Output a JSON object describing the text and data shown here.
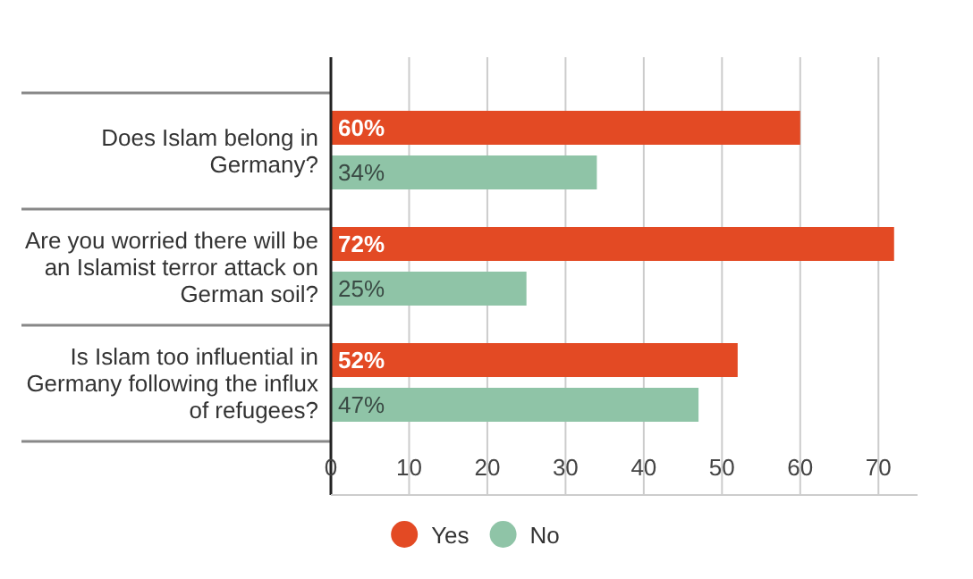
{
  "chart_data": {
    "type": "bar",
    "orientation": "horizontal",
    "categories": [
      "Does Islam belong in Germany?",
      "Are you worried there will be an Islamist terror attack on German soil?",
      "Is Islam too influential in Germany following the influx of refugees?"
    ],
    "series": [
      {
        "name": "Yes",
        "color": "#e34a24",
        "values": [
          60,
          72,
          52
        ],
        "value_labels": [
          "60%",
          "72%",
          "52%"
        ]
      },
      {
        "name": "No",
        "color": "#8fc4a7",
        "values": [
          34,
          25,
          47
        ],
        "value_labels": [
          "34%",
          "25%",
          "47%"
        ]
      }
    ],
    "xlim": [
      0,
      75
    ],
    "xticks": [
      0,
      10,
      20,
      30,
      40,
      50,
      60,
      70
    ],
    "grid": "x",
    "legend": "bottom"
  }
}
